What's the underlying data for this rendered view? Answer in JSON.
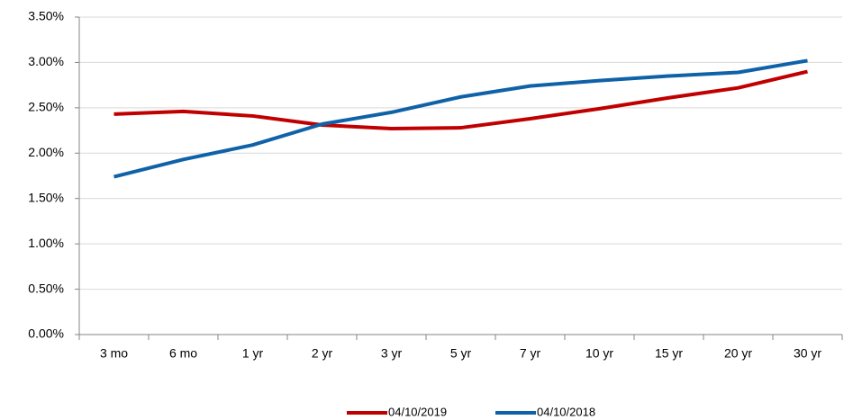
{
  "chart_data": {
    "type": "line",
    "categories": [
      "3 mo",
      "6 mo",
      "1 yr",
      "2 yr",
      "3 yr",
      "5 yr",
      "7 yr",
      "10 yr",
      "15 yr",
      "20 yr",
      "30 yr"
    ],
    "series": [
      {
        "name": "04/10/2019",
        "color": "#c00000",
        "values": [
          2.43,
          2.46,
          2.41,
          2.31,
          2.27,
          2.28,
          2.38,
          2.49,
          2.61,
          2.72,
          2.9
        ]
      },
      {
        "name": "04/10/2018",
        "color": "#0f62a8",
        "values": [
          1.74,
          1.93,
          2.09,
          2.32,
          2.45,
          2.62,
          2.74,
          2.8,
          2.85,
          2.89,
          3.02
        ]
      }
    ],
    "ylim": [
      0,
      3.5
    ],
    "yticks": [
      {
        "value": 0,
        "label": "0.00%"
      },
      {
        "value": 0.5,
        "label": "0.50%"
      },
      {
        "value": 1,
        "label": "1.00%"
      },
      {
        "value": 1.5,
        "label": "1.50%"
      },
      {
        "value": 2,
        "label": "2.00%"
      },
      {
        "value": 2.5,
        "label": "2.50%"
      },
      {
        "value": 3,
        "label": "3.00%"
      },
      {
        "value": 3.5,
        "label": "3.50%"
      }
    ],
    "grid": true,
    "legend": "bottom"
  }
}
